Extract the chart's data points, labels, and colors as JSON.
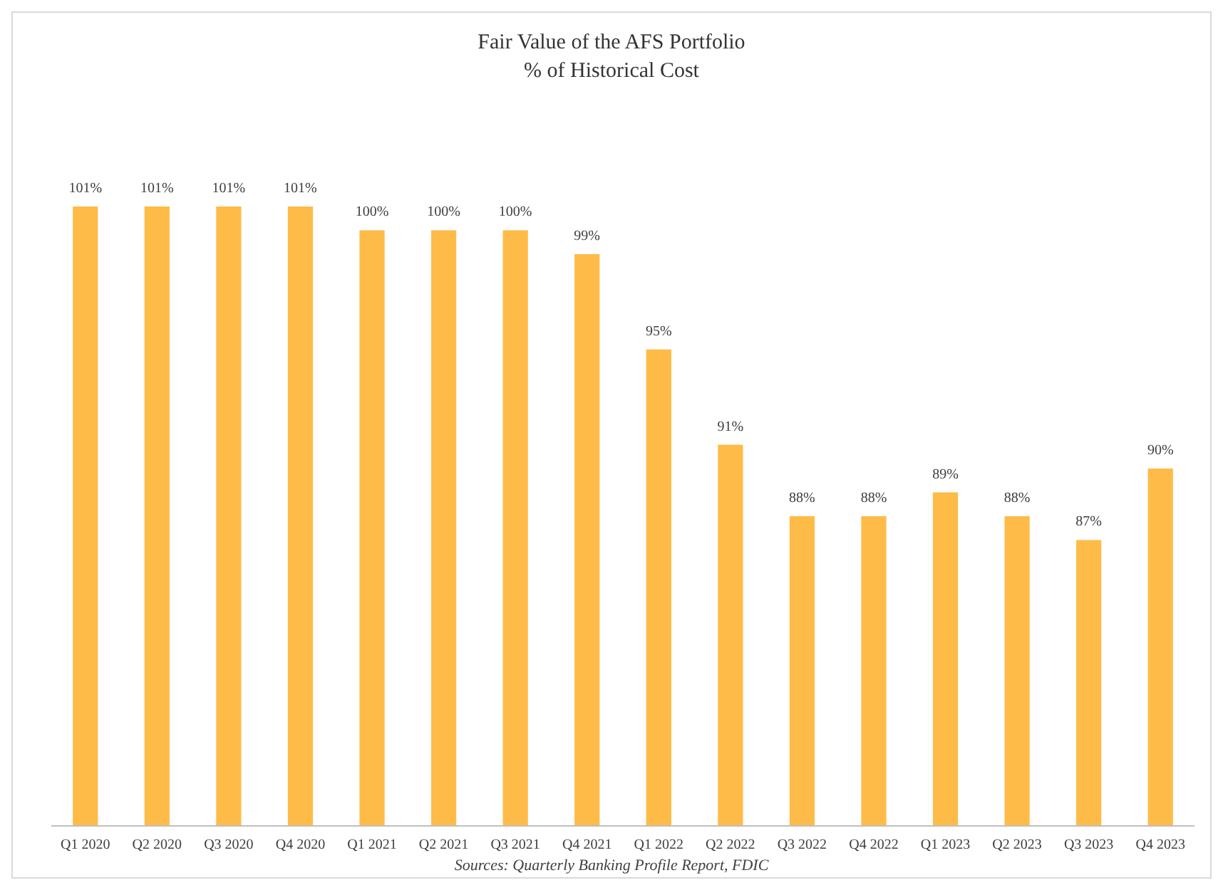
{
  "chart_data": {
    "type": "bar",
    "title": "Fair Value of the AFS Portfolio",
    "subtitle": "% of Historical Cost",
    "categories": [
      "Q1 2020",
      "Q2 2020",
      "Q3 2020",
      "Q4 2020",
      "Q1 2021",
      "Q2 2021",
      "Q3 2021",
      "Q4 2021",
      "Q1 2022",
      "Q2 2022",
      "Q3 2022",
      "Q4 2022",
      "Q1 2023",
      "Q2 2023",
      "Q3 2023",
      "Q4 2023"
    ],
    "values": [
      101,
      101,
      101,
      101,
      100,
      100,
      100,
      99,
      95,
      91,
      88,
      88,
      89,
      88,
      87,
      90
    ],
    "value_labels": [
      "101%",
      "101%",
      "101%",
      "101%",
      "100%",
      "100%",
      "100%",
      "99%",
      "95%",
      "91%",
      "88%",
      "88%",
      "89%",
      "88%",
      "87%",
      "90%"
    ],
    "color": "#ffbb47",
    "ylim": [
      75,
      101
    ],
    "tick_labels": "x",
    "annotations": [
      "Sources: Quarterly Banking Profile Report, FDIC"
    ]
  }
}
